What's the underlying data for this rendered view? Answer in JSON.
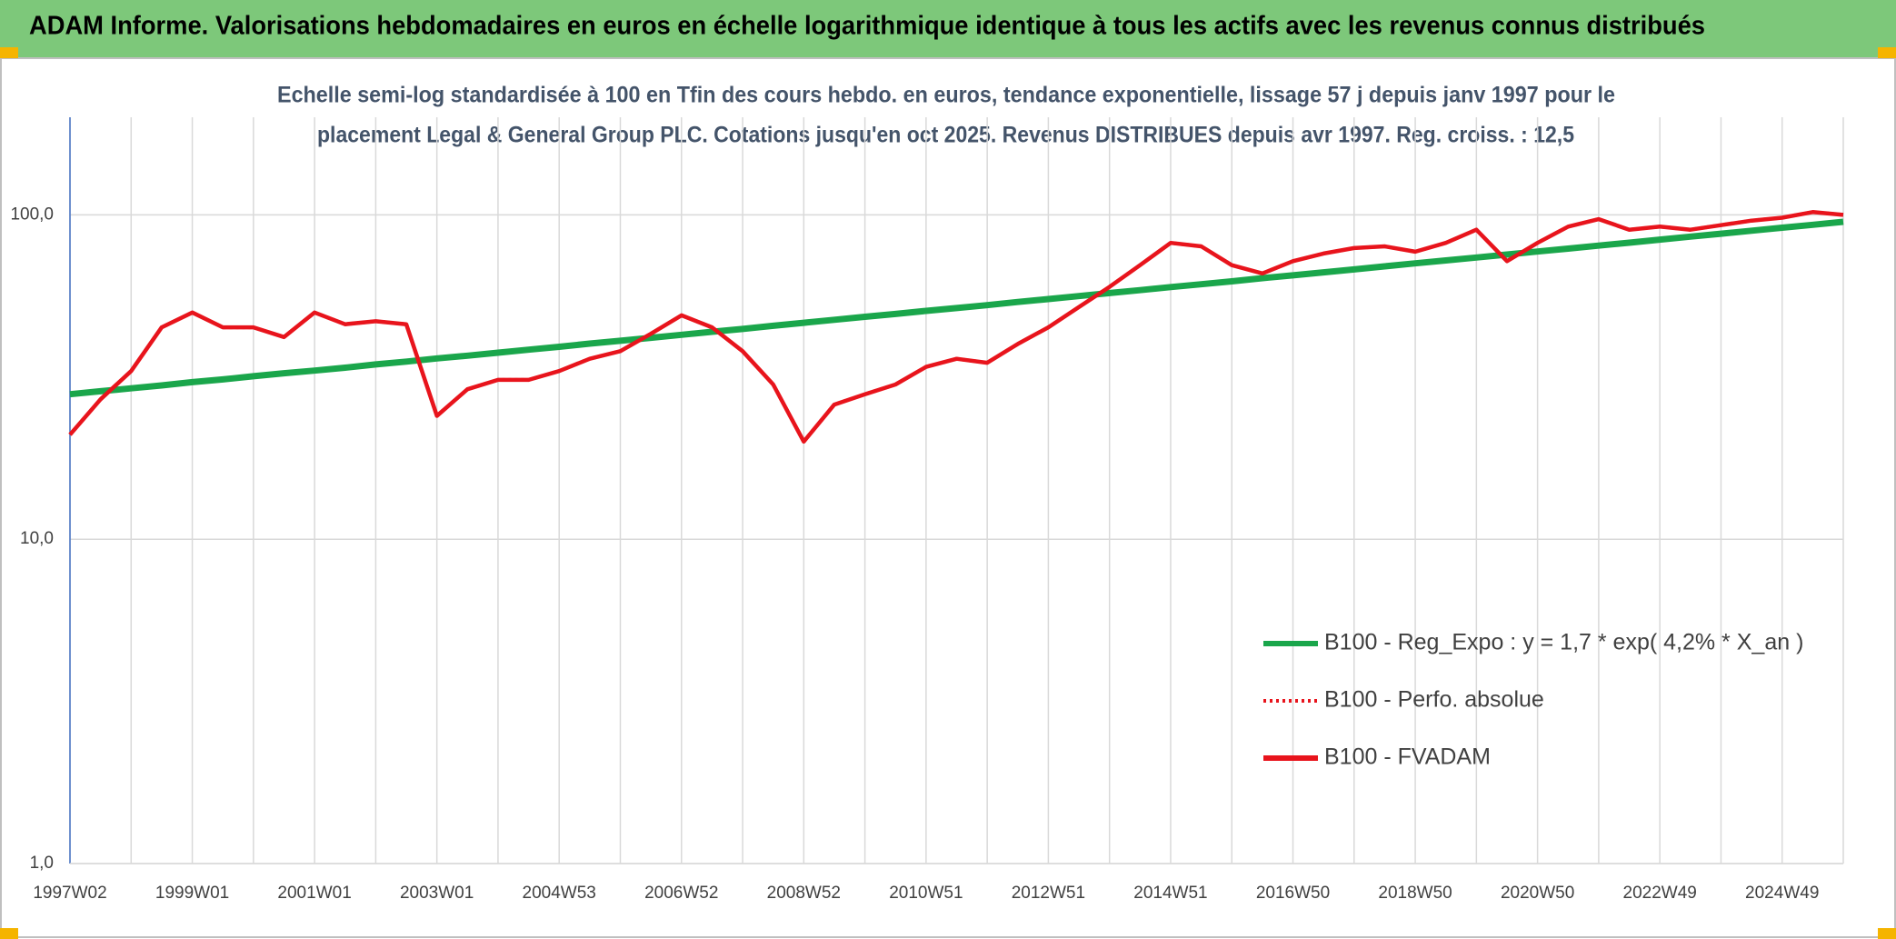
{
  "chart_data": {
    "type": "line",
    "title": "ADAM Informe. Valorisations hebdomadaires en euros en échelle logarithmique identique à tous les actifs avec les revenus connus distribués",
    "subtitle": [
      "Echelle semi-log standardisée à 100 en Tfin des cours hebdo. en euros, tendance exponentielle, lissage 57 j depuis janv 1997 pour le",
      "placement Legal & General Group PLC. Cotations jusqu'en oct 2025. Revenus DISTRIBUES depuis avr 1997. Reg. croiss. : 12,5"
    ],
    "categories": [
      "1997W02",
      null,
      null,
      null,
      "1999W01",
      null,
      null,
      null,
      "2001W01",
      null,
      null,
      null,
      "2003W01",
      null,
      null,
      null,
      "2004W53",
      null,
      null,
      null,
      "2006W52",
      null,
      null,
      null,
      "2008W52",
      null,
      null,
      null,
      "2010W51",
      null,
      null,
      null,
      "2012W51",
      null,
      null,
      null,
      "2014W51",
      null,
      null,
      null,
      "2016W50",
      null,
      null,
      null,
      "2018W50",
      null,
      null,
      null,
      "2020W50",
      null,
      null,
      null,
      "2022W49",
      null,
      null,
      null,
      "2024W49",
      null,
      null
    ],
    "series": [
      {
        "name": "B100 - Reg_Expo : y = 1,7 * exp( 4,2% *  X_an )",
        "color": "#1aa64b",
        "style": "solid",
        "values": [
          28.0,
          28.6,
          29.2,
          29.8,
          30.5,
          31.1,
          31.8,
          32.5,
          33.1,
          33.8,
          34.6,
          35.3,
          36.1,
          36.8,
          37.6,
          38.4,
          39.2,
          40.1,
          40.9,
          41.8,
          42.7,
          43.6,
          44.5,
          45.5,
          46.5,
          47.5,
          48.5,
          49.5,
          50.6,
          51.6,
          52.7,
          53.9,
          55.0,
          56.2,
          57.4,
          58.6,
          59.9,
          61.1,
          62.4,
          63.8,
          65.1,
          66.5,
          67.9,
          69.4,
          70.9,
          72.4,
          73.9,
          75.5,
          77.1,
          78.7,
          80.4,
          82.1,
          83.9,
          85.7,
          87.5,
          89.4,
          91.3,
          93.2,
          95.2
        ]
      },
      {
        "name": "B100 - Perfo. absolue",
        "color": "#e8141c",
        "style": "dotted",
        "values": [
          21,
          27,
          33,
          45,
          50,
          45,
          45,
          42,
          50,
          46,
          47,
          46,
          24,
          29,
          31,
          31,
          33,
          36,
          38,
          43,
          49,
          45,
          38,
          30,
          20,
          26,
          28,
          30,
          34,
          36,
          35,
          40,
          45,
          52,
          60,
          70,
          82,
          80,
          70,
          66,
          72,
          76,
          79,
          80,
          77,
          82,
          90,
          72,
          82,
          92,
          97,
          90,
          92,
          90,
          93,
          96,
          98,
          102,
          100
        ]
      },
      {
        "name": "B100 - FVADAM",
        "color": "#e8141c",
        "style": "solid",
        "values": [
          21,
          27,
          33,
          45,
          50,
          45,
          45,
          42,
          50,
          46,
          47,
          46,
          24,
          29,
          31,
          31,
          33,
          36,
          38,
          43,
          49,
          45,
          38,
          30,
          20,
          26,
          28,
          30,
          34,
          36,
          35,
          40,
          45,
          52,
          60,
          70,
          82,
          80,
          70,
          66,
          72,
          76,
          79,
          80,
          77,
          82,
          90,
          72,
          82,
          92,
          97,
          90,
          92,
          90,
          93,
          96,
          98,
          102,
          100
        ]
      }
    ],
    "ylim": [
      1,
      200
    ],
    "log_y": true,
    "yticks": [
      {
        "value": 1,
        "label": "1,0"
      },
      {
        "value": 10,
        "label": "10,0"
      },
      {
        "value": 100,
        "label": "100,0"
      }
    ],
    "grid": true,
    "legend": "lower right"
  }
}
